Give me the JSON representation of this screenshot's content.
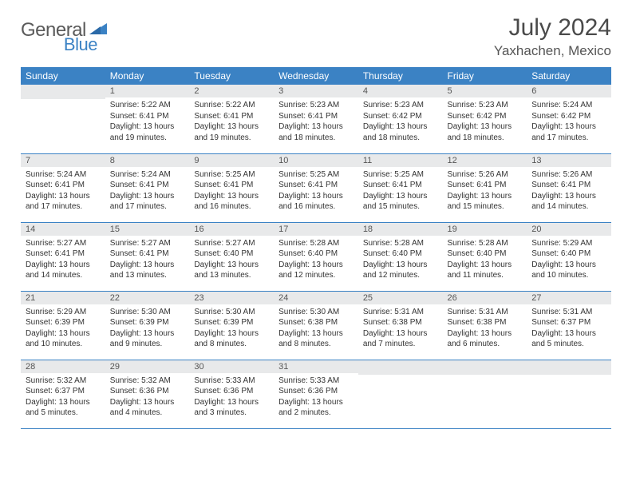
{
  "logo": {
    "text1": "General",
    "text2": "Blue"
  },
  "title": "July 2024",
  "location": "Yaxhachen, Mexico",
  "colors": {
    "header_bg": "#3b82c4",
    "header_fg": "#ffffff",
    "daynum_bg": "#e8e9ea",
    "row_border": "#3b82c4",
    "logo_gray": "#5a5a5a",
    "logo_blue": "#3b82c4"
  },
  "weekdays": [
    "Sunday",
    "Monday",
    "Tuesday",
    "Wednesday",
    "Thursday",
    "Friday",
    "Saturday"
  ],
  "grid": [
    [
      {
        "day": "",
        "lines": []
      },
      {
        "day": "1",
        "lines": [
          "Sunrise: 5:22 AM",
          "Sunset: 6:41 PM",
          "Daylight: 13 hours and 19 minutes."
        ]
      },
      {
        "day": "2",
        "lines": [
          "Sunrise: 5:22 AM",
          "Sunset: 6:41 PM",
          "Daylight: 13 hours and 19 minutes."
        ]
      },
      {
        "day": "3",
        "lines": [
          "Sunrise: 5:23 AM",
          "Sunset: 6:41 PM",
          "Daylight: 13 hours and 18 minutes."
        ]
      },
      {
        "day": "4",
        "lines": [
          "Sunrise: 5:23 AM",
          "Sunset: 6:42 PM",
          "Daylight: 13 hours and 18 minutes."
        ]
      },
      {
        "day": "5",
        "lines": [
          "Sunrise: 5:23 AM",
          "Sunset: 6:42 PM",
          "Daylight: 13 hours and 18 minutes."
        ]
      },
      {
        "day": "6",
        "lines": [
          "Sunrise: 5:24 AM",
          "Sunset: 6:42 PM",
          "Daylight: 13 hours and 17 minutes."
        ]
      }
    ],
    [
      {
        "day": "7",
        "lines": [
          "Sunrise: 5:24 AM",
          "Sunset: 6:41 PM",
          "Daylight: 13 hours and 17 minutes."
        ]
      },
      {
        "day": "8",
        "lines": [
          "Sunrise: 5:24 AM",
          "Sunset: 6:41 PM",
          "Daylight: 13 hours and 17 minutes."
        ]
      },
      {
        "day": "9",
        "lines": [
          "Sunrise: 5:25 AM",
          "Sunset: 6:41 PM",
          "Daylight: 13 hours and 16 minutes."
        ]
      },
      {
        "day": "10",
        "lines": [
          "Sunrise: 5:25 AM",
          "Sunset: 6:41 PM",
          "Daylight: 13 hours and 16 minutes."
        ]
      },
      {
        "day": "11",
        "lines": [
          "Sunrise: 5:25 AM",
          "Sunset: 6:41 PM",
          "Daylight: 13 hours and 15 minutes."
        ]
      },
      {
        "day": "12",
        "lines": [
          "Sunrise: 5:26 AM",
          "Sunset: 6:41 PM",
          "Daylight: 13 hours and 15 minutes."
        ]
      },
      {
        "day": "13",
        "lines": [
          "Sunrise: 5:26 AM",
          "Sunset: 6:41 PM",
          "Daylight: 13 hours and 14 minutes."
        ]
      }
    ],
    [
      {
        "day": "14",
        "lines": [
          "Sunrise: 5:27 AM",
          "Sunset: 6:41 PM",
          "Daylight: 13 hours and 14 minutes."
        ]
      },
      {
        "day": "15",
        "lines": [
          "Sunrise: 5:27 AM",
          "Sunset: 6:41 PM",
          "Daylight: 13 hours and 13 minutes."
        ]
      },
      {
        "day": "16",
        "lines": [
          "Sunrise: 5:27 AM",
          "Sunset: 6:40 PM",
          "Daylight: 13 hours and 13 minutes."
        ]
      },
      {
        "day": "17",
        "lines": [
          "Sunrise: 5:28 AM",
          "Sunset: 6:40 PM",
          "Daylight: 13 hours and 12 minutes."
        ]
      },
      {
        "day": "18",
        "lines": [
          "Sunrise: 5:28 AM",
          "Sunset: 6:40 PM",
          "Daylight: 13 hours and 12 minutes."
        ]
      },
      {
        "day": "19",
        "lines": [
          "Sunrise: 5:28 AM",
          "Sunset: 6:40 PM",
          "Daylight: 13 hours and 11 minutes."
        ]
      },
      {
        "day": "20",
        "lines": [
          "Sunrise: 5:29 AM",
          "Sunset: 6:40 PM",
          "Daylight: 13 hours and 10 minutes."
        ]
      }
    ],
    [
      {
        "day": "21",
        "lines": [
          "Sunrise: 5:29 AM",
          "Sunset: 6:39 PM",
          "Daylight: 13 hours and 10 minutes."
        ]
      },
      {
        "day": "22",
        "lines": [
          "Sunrise: 5:30 AM",
          "Sunset: 6:39 PM",
          "Daylight: 13 hours and 9 minutes."
        ]
      },
      {
        "day": "23",
        "lines": [
          "Sunrise: 5:30 AM",
          "Sunset: 6:39 PM",
          "Daylight: 13 hours and 8 minutes."
        ]
      },
      {
        "day": "24",
        "lines": [
          "Sunrise: 5:30 AM",
          "Sunset: 6:38 PM",
          "Daylight: 13 hours and 8 minutes."
        ]
      },
      {
        "day": "25",
        "lines": [
          "Sunrise: 5:31 AM",
          "Sunset: 6:38 PM",
          "Daylight: 13 hours and 7 minutes."
        ]
      },
      {
        "day": "26",
        "lines": [
          "Sunrise: 5:31 AM",
          "Sunset: 6:38 PM",
          "Daylight: 13 hours and 6 minutes."
        ]
      },
      {
        "day": "27",
        "lines": [
          "Sunrise: 5:31 AM",
          "Sunset: 6:37 PM",
          "Daylight: 13 hours and 5 minutes."
        ]
      }
    ],
    [
      {
        "day": "28",
        "lines": [
          "Sunrise: 5:32 AM",
          "Sunset: 6:37 PM",
          "Daylight: 13 hours and 5 minutes."
        ]
      },
      {
        "day": "29",
        "lines": [
          "Sunrise: 5:32 AM",
          "Sunset: 6:36 PM",
          "Daylight: 13 hours and 4 minutes."
        ]
      },
      {
        "day": "30",
        "lines": [
          "Sunrise: 5:33 AM",
          "Sunset: 6:36 PM",
          "Daylight: 13 hours and 3 minutes."
        ]
      },
      {
        "day": "31",
        "lines": [
          "Sunrise: 5:33 AM",
          "Sunset: 6:36 PM",
          "Daylight: 13 hours and 2 minutes."
        ]
      },
      {
        "day": "",
        "lines": []
      },
      {
        "day": "",
        "lines": []
      },
      {
        "day": "",
        "lines": []
      }
    ]
  ]
}
